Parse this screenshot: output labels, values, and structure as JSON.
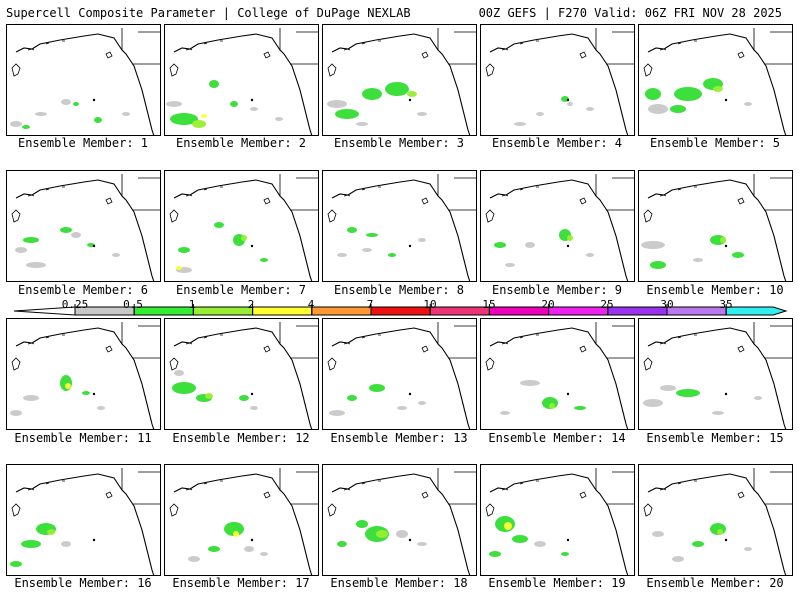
{
  "header": {
    "left_title": "Supercell Composite Parameter | College of DuPage NEXLAB",
    "right_title": "00Z GEFS | F270 Valid: 06Z FRI NOV 28 2025"
  },
  "label_prefix": "Ensemble Member: ",
  "members": [
    "1",
    "2",
    "3",
    "4",
    "5",
    "6",
    "7",
    "8",
    "9",
    "10",
    "11",
    "12",
    "13",
    "14",
    "15",
    "16",
    "17",
    "18",
    "19",
    "20"
  ],
  "color_scale": {
    "ticks": [
      "0.25",
      "0.5",
      "1",
      "2",
      "4",
      "7",
      "10",
      "15",
      "20",
      "25",
      "30",
      "35"
    ],
    "colors": [
      "#c8c8c8",
      "#33ee33",
      "#99ee33",
      "#ffff33",
      "#ff9933",
      "#ee1111",
      "#ee3377",
      "#ee00bb",
      "#ee22ee",
      "#9933ee",
      "#bb77ee",
      "#33eeee"
    ]
  },
  "map_colors": {
    "coast": "#000000",
    "frame": "#000000",
    "gray": "#c8c8c8",
    "green": "#33dd33",
    "lime": "#99ee33",
    "yellow": "#ffff33"
  }
}
